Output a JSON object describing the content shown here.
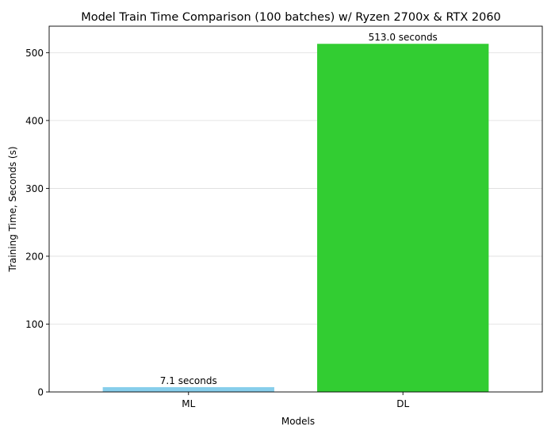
{
  "chart_data": {
    "type": "bar",
    "title": "Model Train Time Comparison (100 batches) w/ Ryzen 2700x & RTX 2060",
    "xlabel": "Models",
    "ylabel": "Training Time, Seconds (s)",
    "categories": [
      "ML",
      "DL"
    ],
    "values": [
      7.1,
      513.0
    ],
    "data_labels": [
      "7.1 seconds",
      "513.0 seconds"
    ],
    "colors": [
      "#87ceeb",
      "#32cd32"
    ],
    "ylim": [
      0,
      539
    ],
    "yticks": [
      0,
      100,
      200,
      300,
      400,
      500
    ],
    "grid": "y-axis, light gray"
  }
}
